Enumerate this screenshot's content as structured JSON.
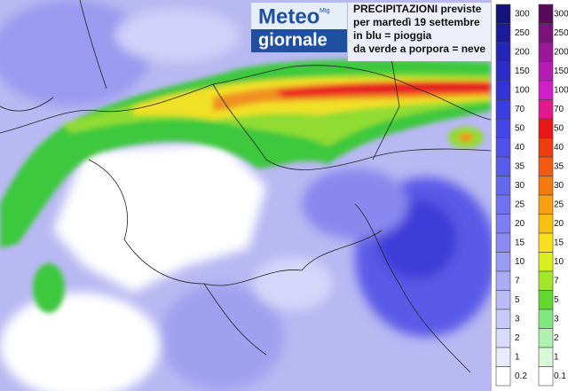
{
  "logo": {
    "line1": "Meteo",
    "line2": "giornale",
    "badge": "Mtg"
  },
  "legend_text": [
    "PRECIPITAZIONI previste",
    "per martedì 19 settembre",
    "in blu = pioggia",
    "da verde a porpora = neve"
  ],
  "rain_scale": [
    "300",
    "250",
    "200",
    "150",
    "100",
    "70",
    "50",
    "40",
    "35",
    "30",
    "25",
    "20",
    "15",
    "10",
    "7",
    "5",
    "3",
    "2",
    "1",
    "0.2"
  ],
  "snow_scale": [
    "300",
    "250",
    "200",
    "150",
    "100",
    "70",
    "50",
    "40",
    "35",
    "30",
    "25",
    "20",
    "15",
    "10",
    "7",
    "5",
    "3",
    "2",
    "1",
    "0.1"
  ]
}
